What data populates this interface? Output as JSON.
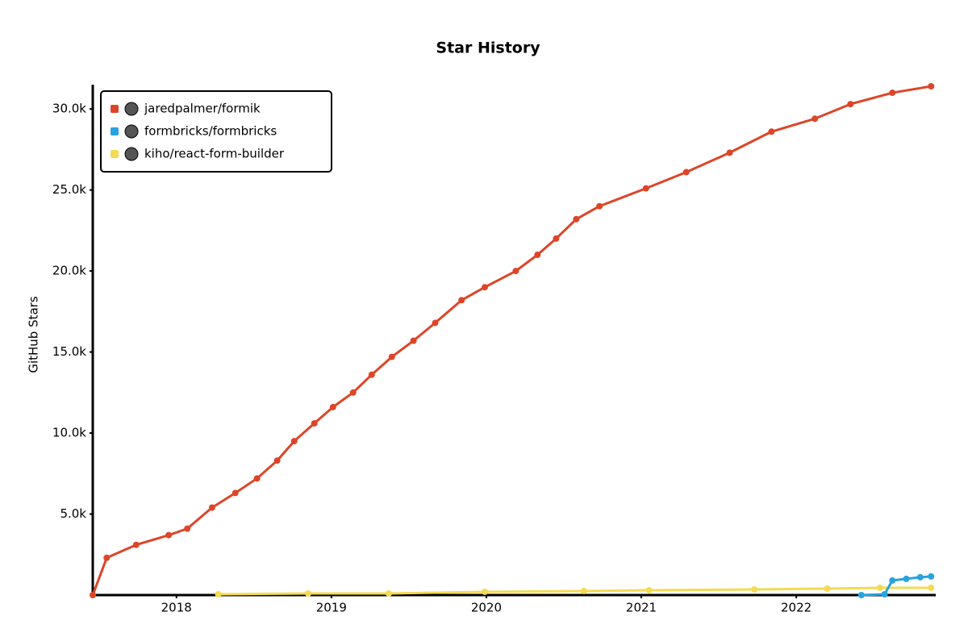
{
  "chart_data": {
    "type": "line",
    "title": "Star History",
    "y_label": "GitHub Stars",
    "xlim": [
      2017.46,
      2022.9
    ],
    "xticks": [
      2018,
      2019,
      2020,
      2021,
      2022
    ],
    "ylim": [
      0,
      31500
    ],
    "yticks": [
      {
        "value": 5000,
        "label": "5.0k"
      },
      {
        "value": 10000,
        "label": "10.0k"
      },
      {
        "value": 15000,
        "label": "15.0k"
      },
      {
        "value": 20000,
        "label": "20.0k"
      },
      {
        "value": 25000,
        "label": "25.0k"
      },
      {
        "value": 30000,
        "label": "30.0k"
      }
    ],
    "grid": false,
    "legend": "upper left",
    "series": [
      {
        "name": "jaredpalmer/formik",
        "color": "#dd4528",
        "x": [
          2017.46,
          2017.55,
          2017.74,
          2017.95,
          2018.07,
          2018.23,
          2018.38,
          2018.52,
          2018.65,
          2018.76,
          2018.89,
          2019.01,
          2019.14,
          2019.26,
          2019.39,
          2019.53,
          2019.67,
          2019.84,
          2019.99,
          2020.19,
          2020.33,
          2020.45,
          2020.58,
          2020.73,
          2021.03,
          2021.29,
          2021.57,
          2021.84,
          2022.12,
          2022.35,
          2022.62,
          2022.87
        ],
        "values": [
          0,
          2300,
          3100,
          3700,
          4100,
          5400,
          6300,
          7200,
          8300,
          9500,
          10600,
          11600,
          12500,
          13600,
          14700,
          15700,
          16800,
          18200,
          19000,
          20000,
          21000,
          22000,
          23200,
          24000,
          25100,
          26100,
          27300,
          28600,
          29400,
          30300,
          31000,
          31400
        ]
      },
      {
        "name": "formbricks/formbricks",
        "color": "#28a3dd",
        "x": [
          2022.42,
          2022.57,
          2022.62,
          2022.71,
          2022.8,
          2022.87
        ],
        "values": [
          0,
          50,
          900,
          1000,
          1100,
          1150
        ]
      },
      {
        "name": "kiho/react-form-builder",
        "color": "#f3db52",
        "x": [
          2018.27,
          2018.85,
          2019.37,
          2019.99,
          2020.63,
          2021.05,
          2021.73,
          2022.2,
          2022.54,
          2022.87
        ],
        "values": [
          50,
          100,
          100,
          200,
          250,
          300,
          350,
          400,
          450,
          450
        ]
      }
    ]
  }
}
